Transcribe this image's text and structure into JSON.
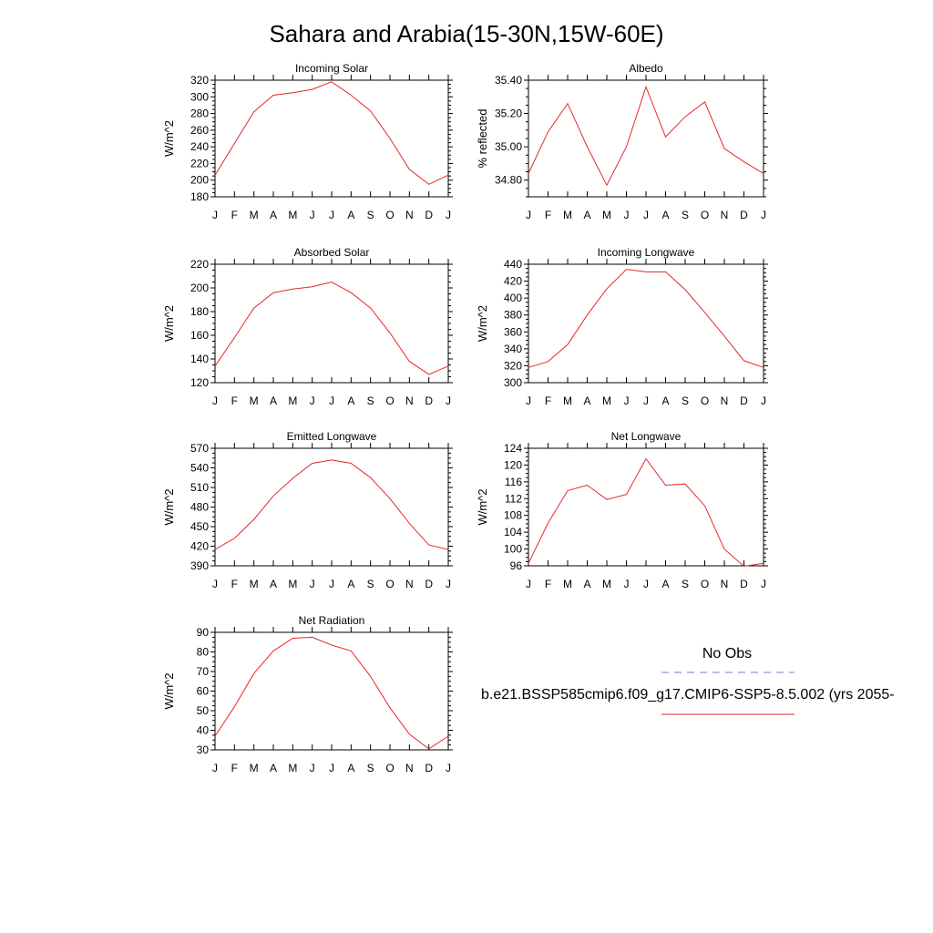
{
  "title": "Sahara and Arabia(15-30N,15W-60E)",
  "legend": {
    "obs_label": "No Obs",
    "obs_color": "#7a7ad8",
    "model_label": "b.e21.BSSP585cmip6.f09_g17.CMIP6-SSP5-8.5.002 (yrs 2055-",
    "model_color": "#e8262a"
  },
  "chart_data": [
    {
      "type": "line",
      "title": "Incoming Solar",
      "ylabel": "W/m^2",
      "xlabel": "",
      "categories": [
        "J",
        "F",
        "M",
        "A",
        "M",
        "J",
        "J",
        "A",
        "S",
        "O",
        "N",
        "D",
        "J"
      ],
      "ylim": [
        180,
        320
      ],
      "yticks": [
        180,
        200,
        220,
        240,
        260,
        280,
        300,
        320
      ],
      "ytick_labels": [
        "180",
        "200",
        "220",
        "240",
        "260",
        "280",
        "300",
        "320"
      ],
      "series": [
        {
          "values": [
            206,
            244,
            282,
            302,
            305,
            309,
            318,
            302,
            283,
            250,
            213,
            195,
            206
          ]
        }
      ]
    },
    {
      "type": "line",
      "title": "Albedo",
      "ylabel": "% reflected",
      "xlabel": "",
      "categories": [
        "J",
        "F",
        "M",
        "A",
        "M",
        "J",
        "J",
        "A",
        "S",
        "O",
        "N",
        "D",
        "J"
      ],
      "ylim": [
        34.7,
        35.4
      ],
      "yticks": [
        34.8,
        35.0,
        35.2,
        35.4
      ],
      "ytick_labels": [
        "34.80",
        "35.00",
        "35.20",
        "35.40"
      ],
      "series": [
        {
          "values": [
            34.84,
            35.09,
            35.26,
            35.0,
            34.77,
            35.0,
            35.36,
            35.06,
            35.18,
            35.27,
            34.99,
            34.91,
            34.84
          ]
        }
      ]
    },
    {
      "type": "line",
      "title": "Absorbed Solar",
      "ylabel": "W/m^2",
      "xlabel": "",
      "categories": [
        "J",
        "F",
        "M",
        "A",
        "M",
        "J",
        "J",
        "A",
        "S",
        "O",
        "N",
        "D",
        "J"
      ],
      "ylim": [
        120,
        220
      ],
      "yticks": [
        120,
        140,
        160,
        180,
        200,
        220
      ],
      "ytick_labels": [
        "120",
        "140",
        "160",
        "180",
        "200",
        "220"
      ],
      "series": [
        {
          "values": [
            134,
            158,
            183,
            196,
            199,
            201,
            205,
            196,
            183,
            162,
            138,
            127,
            134
          ]
        }
      ]
    },
    {
      "type": "line",
      "title": "Incoming Longwave",
      "ylabel": "W/m^2",
      "xlabel": "",
      "categories": [
        "J",
        "F",
        "M",
        "A",
        "M",
        "J",
        "J",
        "A",
        "S",
        "O",
        "N",
        "D",
        "J"
      ],
      "ylim": [
        300,
        440
      ],
      "yticks": [
        300,
        320,
        340,
        360,
        380,
        400,
        420,
        440
      ],
      "ytick_labels": [
        "300",
        "320",
        "340",
        "360",
        "380",
        "400",
        "420",
        "440"
      ],
      "series": [
        {
          "values": [
            318,
            325,
            345,
            380,
            411,
            434,
            431,
            431,
            410,
            383,
            355,
            326,
            318
          ]
        }
      ]
    },
    {
      "type": "line",
      "title": "Emitted Longwave",
      "ylabel": "W/m^2",
      "xlabel": "",
      "categories": [
        "J",
        "F",
        "M",
        "A",
        "M",
        "J",
        "J",
        "A",
        "S",
        "O",
        "N",
        "D",
        "J"
      ],
      "ylim": [
        390,
        570
      ],
      "yticks": [
        390,
        420,
        450,
        480,
        510,
        540,
        570
      ],
      "ytick_labels": [
        "390",
        "420",
        "450",
        "480",
        "510",
        "540",
        "570"
      ],
      "series": [
        {
          "values": [
            415,
            432,
            461,
            497,
            524,
            547,
            552,
            547,
            525,
            493,
            455,
            422,
            415
          ]
        }
      ]
    },
    {
      "type": "line",
      "title": "Net Longwave",
      "ylabel": "W/m^2",
      "xlabel": "",
      "categories": [
        "J",
        "F",
        "M",
        "A",
        "M",
        "J",
        "J",
        "A",
        "S",
        "O",
        "N",
        "D",
        "J"
      ],
      "ylim": [
        96,
        124
      ],
      "yticks": [
        96,
        100,
        104,
        108,
        112,
        116,
        120,
        124
      ],
      "ytick_labels": [
        "96",
        "100",
        "104",
        "108",
        "112",
        "116",
        "120",
        "124"
      ],
      "series": [
        {
          "values": [
            96.6,
            106.2,
            113.9,
            115.2,
            111.8,
            113.0,
            121.5,
            115.2,
            115.5,
            110.3,
            100.0,
            95.9,
            96.6
          ]
        }
      ]
    },
    {
      "type": "line",
      "title": "Net Radiation",
      "ylabel": "W/m^2",
      "xlabel": "",
      "categories": [
        "J",
        "F",
        "M",
        "A",
        "M",
        "J",
        "J",
        "A",
        "S",
        "O",
        "N",
        "D",
        "J"
      ],
      "ylim": [
        30,
        90
      ],
      "yticks": [
        30,
        40,
        50,
        60,
        70,
        80,
        90
      ],
      "ytick_labels": [
        "30",
        "40",
        "50",
        "60",
        "70",
        "80",
        "90"
      ],
      "series": [
        {
          "values": [
            37,
            52,
            69,
            80.5,
            87,
            87.5,
            83.5,
            80.5,
            67.5,
            51.5,
            38,
            30.5,
            37
          ]
        }
      ]
    }
  ]
}
